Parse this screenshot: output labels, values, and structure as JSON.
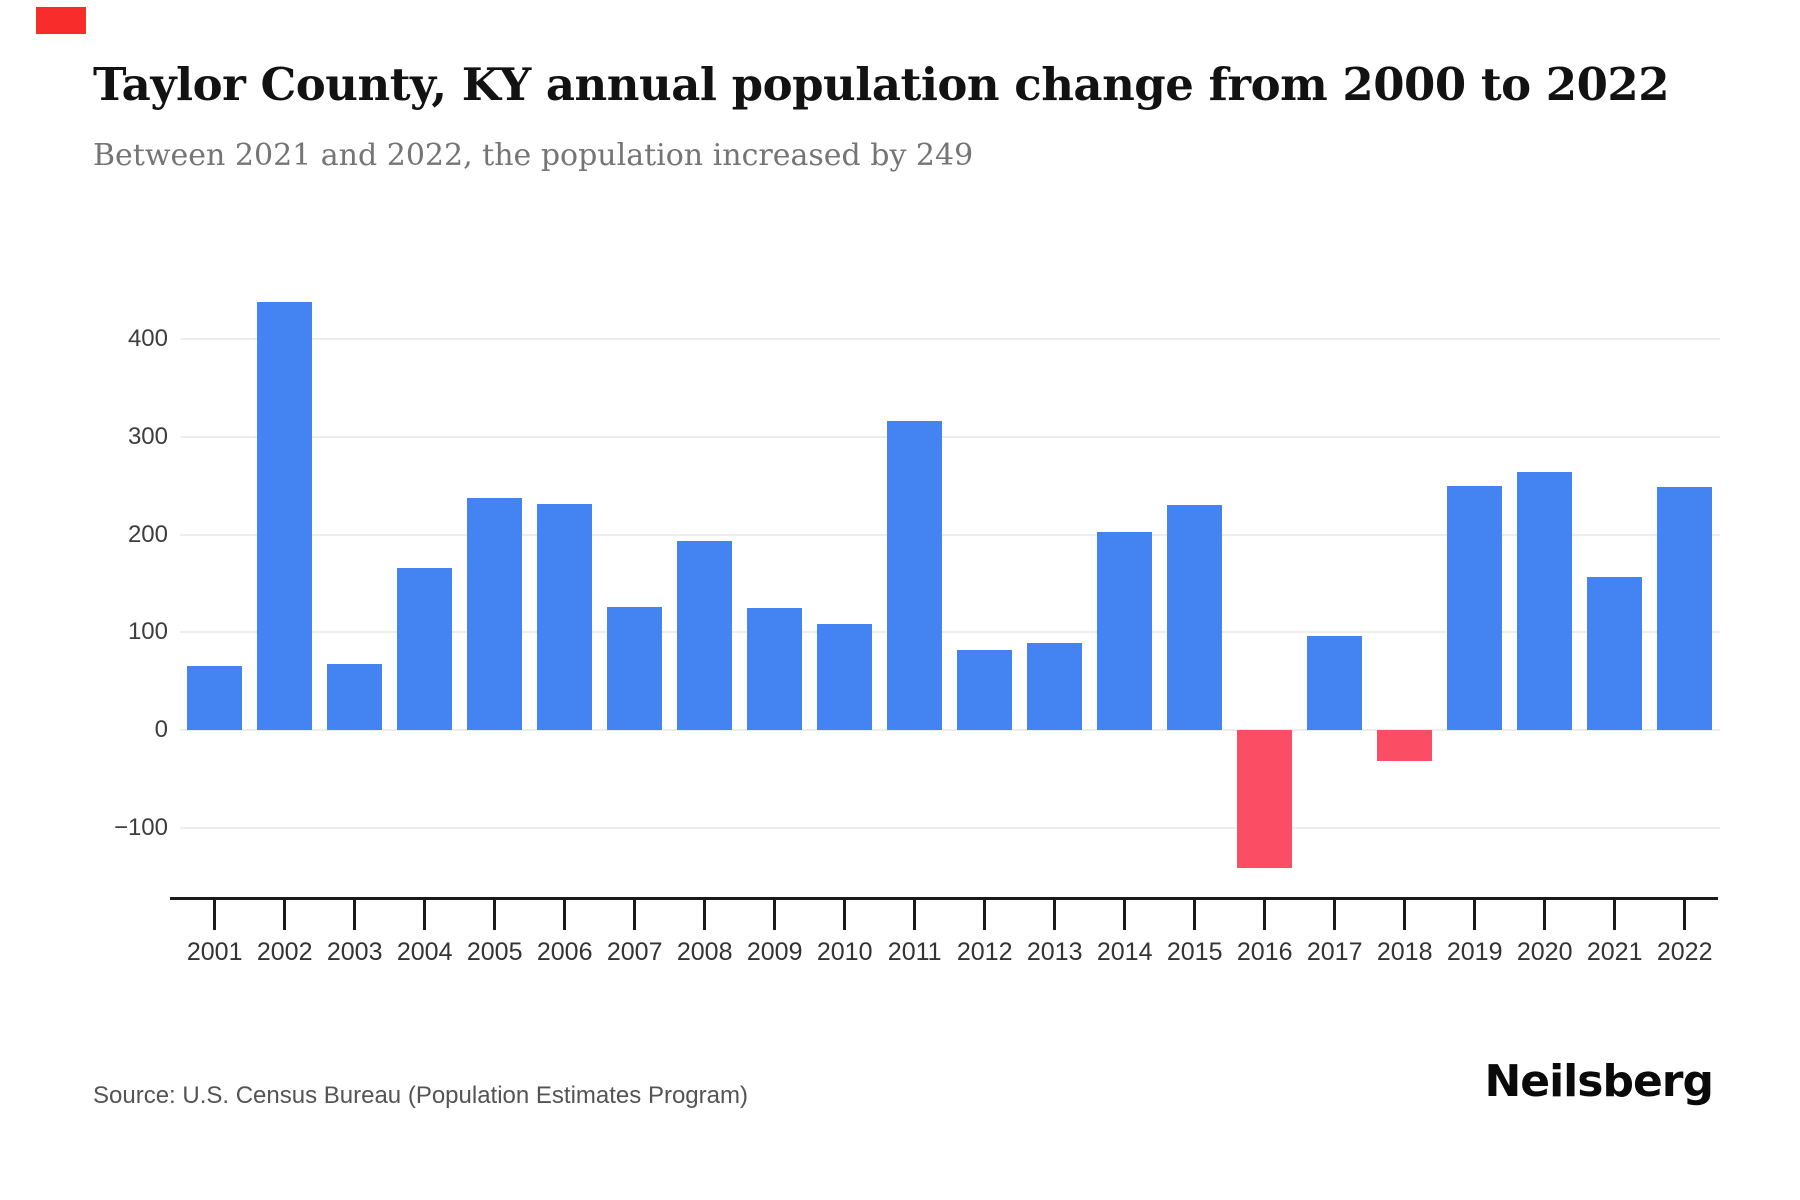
{
  "brand": {
    "mark_color": "#f92c2c",
    "logo_text": "Neilsberg"
  },
  "header": {
    "title": "Taylor County, KY annual population change from 2000 to 2022",
    "subtitle": "Between 2021 and 2022, the population increased by 249"
  },
  "footer": {
    "source": "Source: U.S. Census Bureau (Population Estimates Program)"
  },
  "chart_data": {
    "type": "bar",
    "title": "Taylor County, KY annual population change from 2000 to 2022",
    "subtitle": "Between 2021 and 2022, the population increased by 249",
    "categories": [
      "2001",
      "2002",
      "2003",
      "2004",
      "2005",
      "2006",
      "2007",
      "2008",
      "2009",
      "2010",
      "2011",
      "2012",
      "2013",
      "2014",
      "2015",
      "2016",
      "2017",
      "2018",
      "2019",
      "2020",
      "2021",
      "2022"
    ],
    "values": [
      66,
      438,
      68,
      166,
      237,
      231,
      126,
      194,
      125,
      109,
      316,
      82,
      89,
      203,
      230,
      -141,
      96,
      -32,
      250,
      264,
      157,
      249
    ],
    "xlabel": "",
    "ylabel": "",
    "ylim": [
      -150,
      460
    ],
    "yticks": [
      -100,
      0,
      100,
      200,
      300,
      400
    ],
    "grid": true,
    "legend": false,
    "bar_color_positive": "#4484f2",
    "bar_color_negative": "#fb4d63"
  }
}
